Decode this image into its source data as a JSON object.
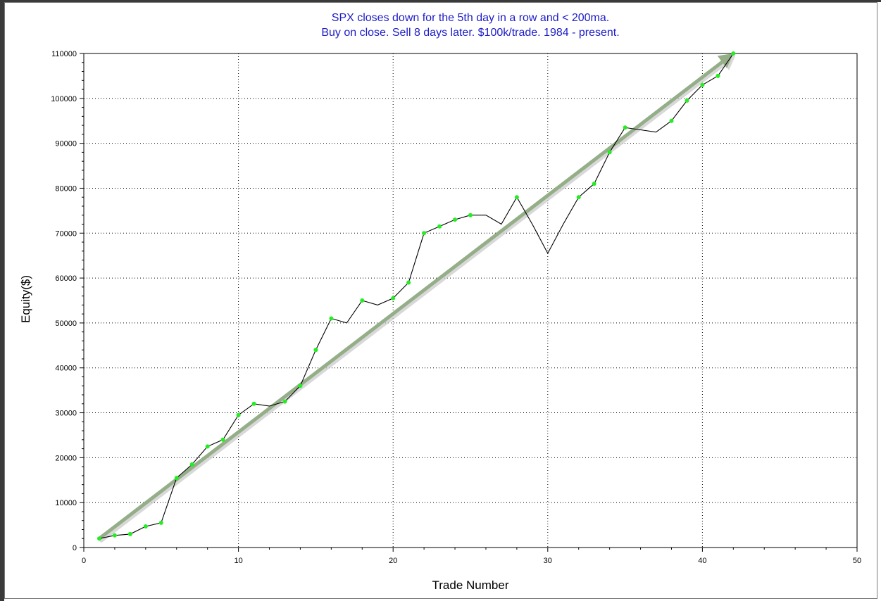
{
  "chart_data": {
    "type": "line",
    "title_lines": [
      "SPX closes down for the 5th day in a row and < 200ma.",
      "Buy on close. Sell 8 days later. $100k/trade. 1984 - present."
    ],
    "xlabel": "Trade Number",
    "ylabel": "Equity($)",
    "xlim": [
      0,
      50
    ],
    "ylim": [
      0,
      110000
    ],
    "x_ticks": [
      "0",
      "10",
      "20",
      "30",
      "40",
      "50"
    ],
    "y_ticks": [
      "0",
      "10000",
      "20000",
      "30000",
      "40000",
      "50000",
      "60000",
      "70000",
      "80000",
      "90000",
      "100000",
      "110000"
    ],
    "grid": true,
    "series": [
      {
        "points": [
          [
            1,
            2000
          ],
          [
            2,
            2700
          ],
          [
            3,
            3000
          ],
          [
            4,
            4700
          ],
          [
            5,
            5500
          ],
          [
            6,
            15500
          ],
          [
            7,
            18500
          ],
          [
            8,
            22500
          ],
          [
            9,
            24000
          ],
          [
            10,
            29500
          ],
          [
            11,
            32000
          ],
          [
            12,
            31500
          ],
          [
            13,
            32500
          ],
          [
            14,
            36000
          ],
          [
            15,
            44000
          ],
          [
            16,
            51000
          ],
          [
            17,
            50000
          ],
          [
            18,
            55000
          ],
          [
            19,
            54000
          ],
          [
            20,
            55500
          ],
          [
            21,
            59000
          ],
          [
            22,
            70000
          ],
          [
            23,
            71500
          ],
          [
            24,
            73000
          ],
          [
            25,
            74000
          ],
          [
            26,
            74000
          ],
          [
            27,
            72000
          ],
          [
            28,
            78000
          ],
          [
            29,
            72000
          ],
          [
            30,
            65500
          ],
          [
            31,
            72000
          ],
          [
            32,
            78000
          ],
          [
            33,
            81000
          ],
          [
            34,
            88000
          ],
          [
            35,
            93500
          ],
          [
            36,
            93000
          ],
          [
            37,
            92500
          ],
          [
            38,
            95000
          ],
          [
            39,
            99500
          ],
          [
            40,
            103000
          ],
          [
            41,
            105000
          ],
          [
            42,
            110000
          ]
        ],
        "marker_x": [
          1,
          2,
          3,
          4,
          5,
          6,
          7,
          8,
          9,
          10,
          11,
          13,
          14,
          15,
          16,
          18,
          20,
          21,
          22,
          23,
          24,
          25,
          28,
          32,
          33,
          34,
          35,
          38,
          39,
          40,
          41,
          42
        ],
        "line_color": "#000000",
        "marker_color": "#22ee22"
      }
    ],
    "trend_arrow": {
      "from": [
        1,
        2000
      ],
      "to": [
        42,
        110000
      ],
      "color": "#94ae88"
    }
  }
}
